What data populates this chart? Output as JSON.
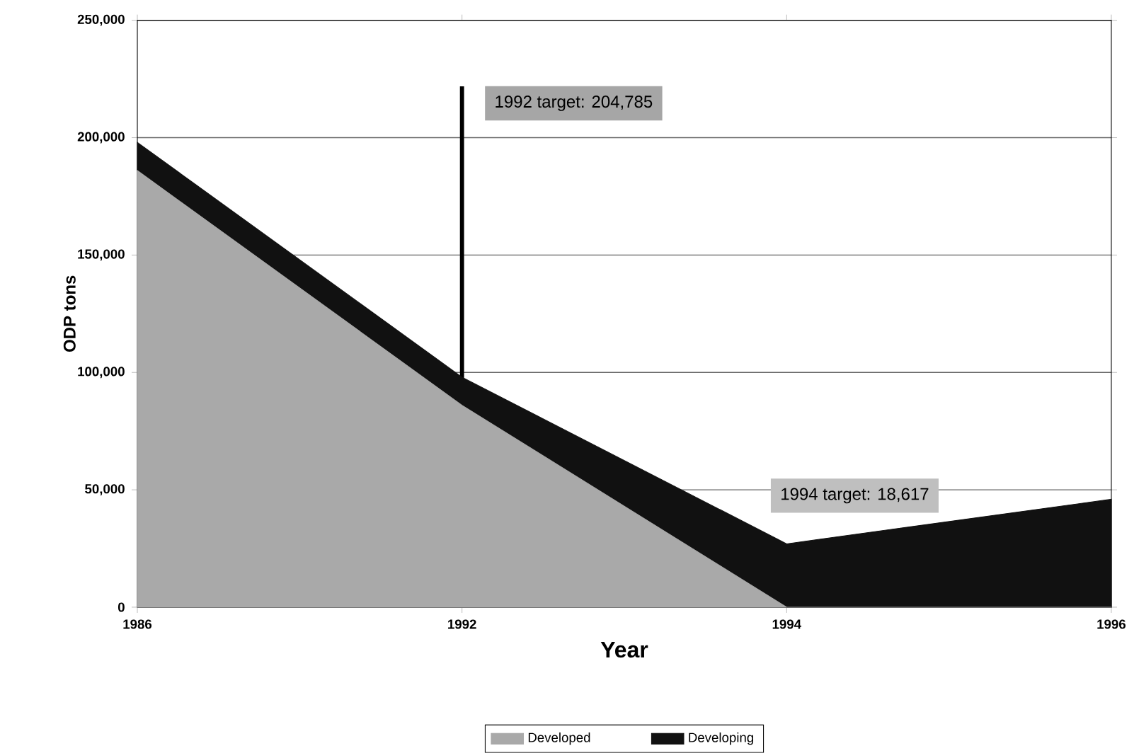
{
  "chart_data": {
    "type": "area",
    "stacked": true,
    "xlabel": "Year",
    "ylabel": "ODP tons",
    "categories": [
      "1986",
      "1992",
      "1994",
      "1996"
    ],
    "series": [
      {
        "name": "Developed",
        "color": "#a9a9a9",
        "values": [
          186000,
          86000,
          0,
          0
        ]
      },
      {
        "name": "Developing",
        "color": "#111111",
        "values": [
          12000,
          12000,
          27000,
          46000
        ]
      }
    ],
    "ylim": [
      0,
      250000
    ],
    "yticks": [
      0,
      {
        "value": 50000,
        "label": "50,000"
      },
      {
        "value": 100000,
        "label": "100,000"
      },
      {
        "value": 150000,
        "label": "150,000"
      },
      {
        "value": 200000,
        "label": "200,000"
      },
      {
        "value": 250000,
        "label": "250,000"
      }
    ],
    "ref_lines": [
      {
        "axis": "x",
        "value": "1992",
        "label": "1992 target: 204,785",
        "color": "#000000"
      }
    ],
    "annotations": [
      "1994 target: 18,617"
    ],
    "grid": "y",
    "legend": "bottom"
  }
}
